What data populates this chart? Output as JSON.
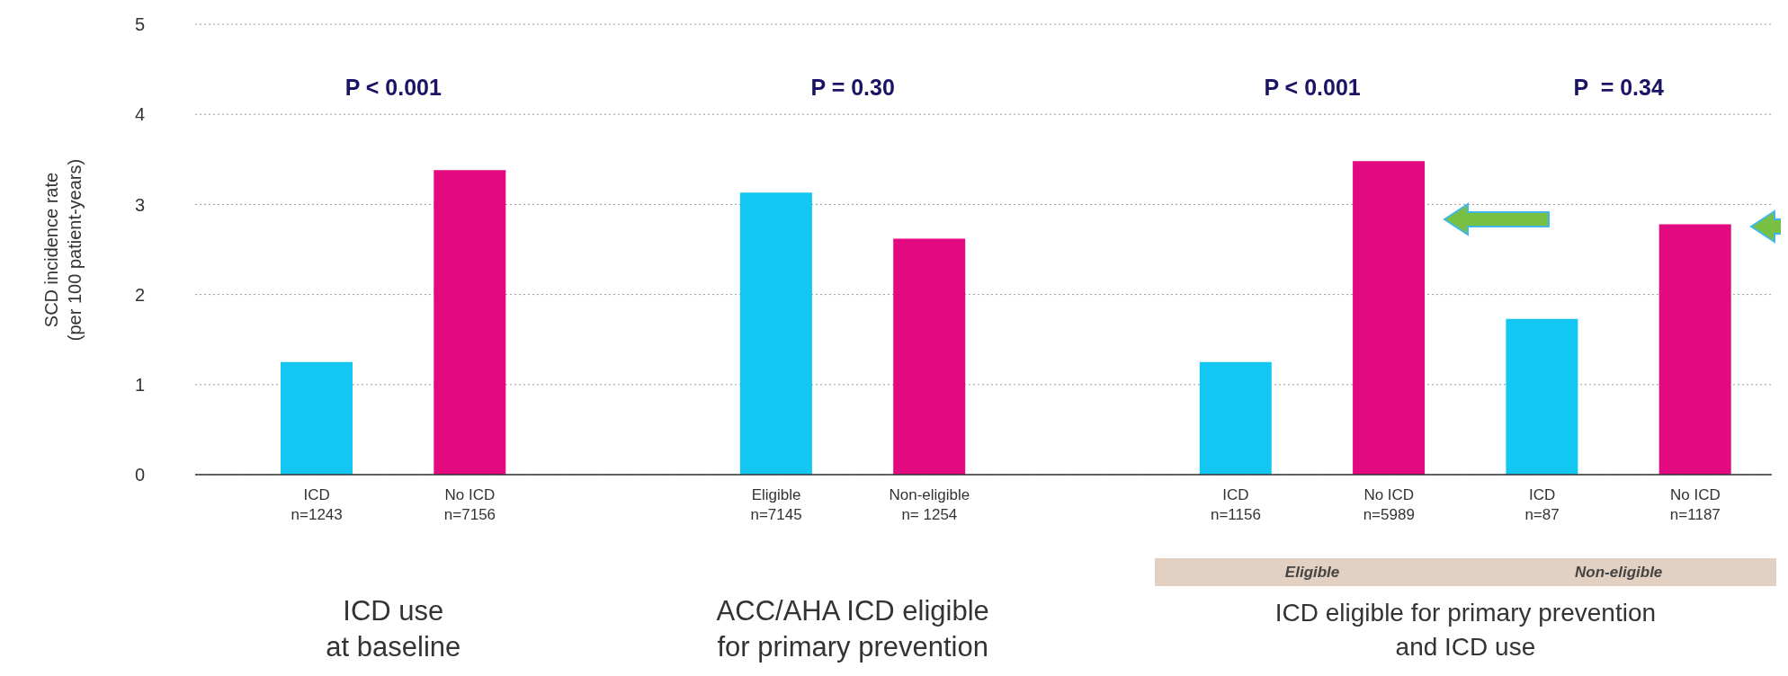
{
  "chart_data": {
    "type": "bar",
    "ylabel": "SCD incidence rate\n(per 100 patient-years)",
    "categories": [
      "ICD\nn=1243",
      "No ICD\nn=7156",
      null,
      "Eligible\nn=7145",
      "Non-eligible\nn= 1254",
      null,
      "ICD\nn=1156",
      "No ICD\nn=5989",
      "ICD\nn=87",
      "No ICD\nn=1187"
    ],
    "values": [
      1.25,
      3.38,
      null,
      3.13,
      2.62,
      null,
      1.25,
      3.48,
      1.73,
      2.78
    ],
    "colors": [
      "#12c8f2",
      "#e3097f",
      null,
      "#12c8f2",
      "#e3097f",
      null,
      "#12c8f2",
      "#e3097f",
      "#12c8f2",
      "#e3097f"
    ],
    "ylim": [
      0,
      5
    ],
    "yticks": [
      0,
      1,
      2,
      3,
      4,
      5
    ],
    "grid": "y",
    "annotations": [
      "P < 0.001",
      "P = 0.30",
      "P < 0.001",
      "P  = 0.34",
      "ICD use\nat baseline",
      "ACC/AHA ICD eligible\nfor primary prevention",
      "ICD eligible for primary prevention\nand ICD use",
      "Eligible",
      "Non-eligible"
    ]
  }
}
